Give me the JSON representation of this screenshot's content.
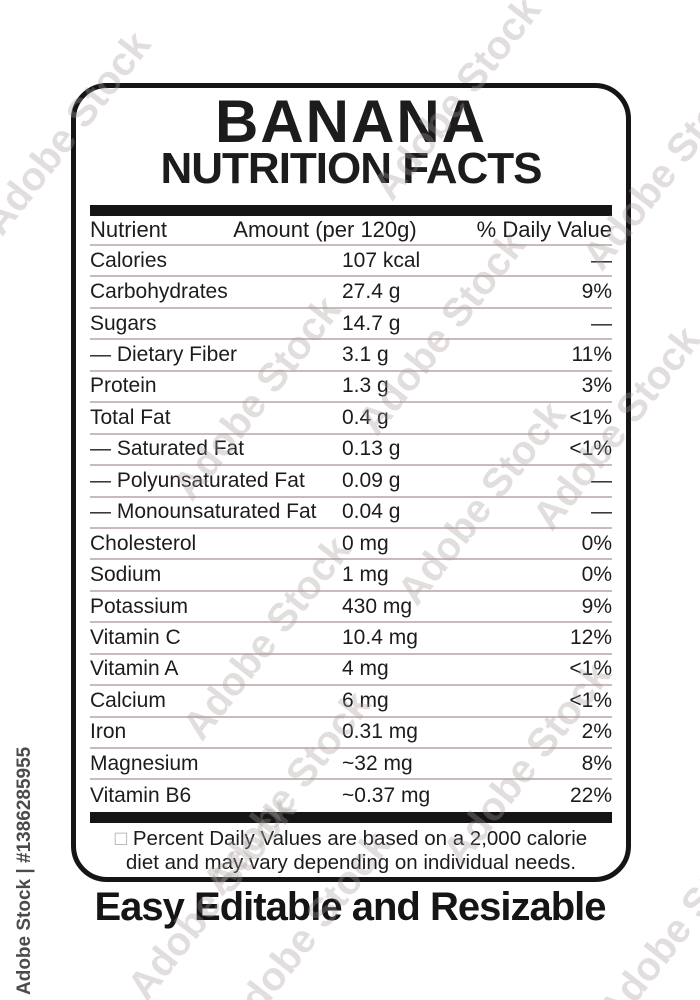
{
  "label": {
    "title": "BANANA",
    "subtitle": "NUTRITION FACTS",
    "table": {
      "headers": {
        "nutrient": "Nutrient",
        "amount": "Amount (per 120g)",
        "daily_value": "% Daily Value"
      },
      "rows": [
        {
          "nutrient": "Calories",
          "amount": "107 kcal",
          "daily_value": "—"
        },
        {
          "nutrient": "Carbohydrates",
          "amount": "27.4 g",
          "daily_value": "9%"
        },
        {
          "nutrient": "Sugars",
          "amount": "14.7 g",
          "daily_value": "—"
        },
        {
          "nutrient": "— Dietary Fiber",
          "amount": "3.1 g",
          "daily_value": "11%"
        },
        {
          "nutrient": "Protein",
          "amount": "1.3 g",
          "daily_value": "3%"
        },
        {
          "nutrient": "Total Fat",
          "amount": "0.4 g",
          "daily_value": "<1%"
        },
        {
          "nutrient": "— Saturated Fat",
          "amount": "0.13 g",
          "daily_value": "<1%"
        },
        {
          "nutrient": "— Polyunsaturated Fat",
          "amount": "0.09 g",
          "daily_value": "—"
        },
        {
          "nutrient": "— Monounsaturated Fat",
          "amount": "0.04 g",
          "daily_value": "—"
        },
        {
          "nutrient": "Cholesterol",
          "amount": "0 mg",
          "daily_value": "0%"
        },
        {
          "nutrient": "Sodium",
          "amount": "1 mg",
          "daily_value": "0%"
        },
        {
          "nutrient": "Potassium",
          "amount": "430 mg",
          "daily_value": "9%"
        },
        {
          "nutrient": "Vitamin C",
          "amount": "10.4 mg",
          "daily_value": "12%"
        },
        {
          "nutrient": "Vitamin A",
          "amount": "4 mg",
          "daily_value": "<1%"
        },
        {
          "nutrient": "Calcium",
          "amount": "6 mg",
          "daily_value": "<1%"
        },
        {
          "nutrient": "Iron",
          "amount": "0.31 mg",
          "daily_value": "2%"
        },
        {
          "nutrient": "Magnesium",
          "amount": "~32 mg",
          "daily_value": "8%"
        },
        {
          "nutrient": "Vitamin B6",
          "amount": "~0.37 mg",
          "daily_value": "22%"
        }
      ]
    },
    "footnote": {
      "bullet": "□",
      "line1": "Percent Daily Values are based on a 2,000 calorie",
      "line2": "diet and may vary depending on individual needs."
    }
  },
  "tagline": "Easy Editable and Resizable",
  "watermark": {
    "text": "Adobe Stock",
    "id_text": "Adobe Stock | #1386285955"
  },
  "colors": {
    "text": "#1c1c1c",
    "border": "#151515",
    "separator": "#c9bbbb",
    "watermark": "#a89b9b",
    "stock_id_text": "#4b4b4b"
  }
}
